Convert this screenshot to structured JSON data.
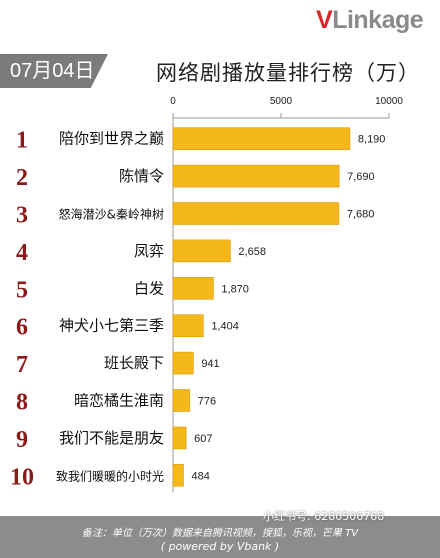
{
  "brand": {
    "first": "V",
    "rest": "Linkage"
  },
  "date": "07月04日",
  "title": "网络剧播放量排行榜（万）",
  "footer": {
    "note": "备注：单位（万次）数据来自腾讯视频，搜狐，乐视，芒果 TV",
    "powered": "( powered by Vbank )"
  },
  "watermark": "小红书号: 6280506768",
  "colors": {
    "bar": "#f5b81b",
    "rank": "#8b1a1a",
    "grid": "#9a9a9a"
  },
  "chart_data": {
    "type": "bar",
    "orientation": "horizontal",
    "xlim": [
      0,
      10000
    ],
    "xticks": [
      0,
      5000,
      10000
    ],
    "xtick_labels": [
      "0",
      "5000",
      "10000"
    ],
    "ranks": [
      "1",
      "2",
      "3",
      "4",
      "5",
      "6",
      "7",
      "8",
      "9",
      "10"
    ],
    "categories": [
      "陪你到世界之巅",
      "陈情令",
      "怒海潜沙&秦岭神树",
      "凤弈",
      "白发",
      "神犬小七第三季",
      "班长殿下",
      "暗恋橘生淮南",
      "我们不能是朋友",
      "致我们暖暖的小时光"
    ],
    "values": [
      8190,
      7690,
      7680,
      2658,
      1870,
      1404,
      941,
      776,
      607,
      484
    ],
    "value_labels": [
      "8,190",
      "7,690",
      "7,680",
      "2,658",
      "1,870",
      "1,404",
      "941",
      "776",
      "607",
      "484"
    ]
  }
}
